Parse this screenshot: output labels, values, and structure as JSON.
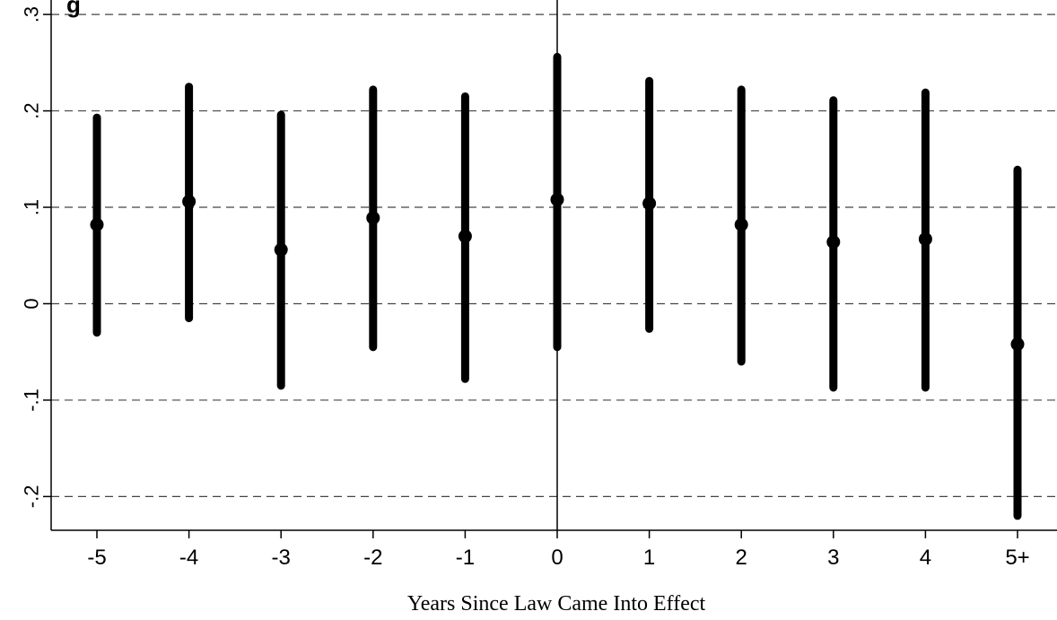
{
  "chart_data": {
    "type": "scatter",
    "title_fragment": "g",
    "xlabel": "Years Since Law Came Into Effect",
    "ylabel": "",
    "categories": [
      "-5",
      "-4",
      "-3",
      "-2",
      "-1",
      "0",
      "1",
      "2",
      "3",
      "4",
      "5+"
    ],
    "estimates": [
      0.082,
      0.106,
      0.056,
      0.089,
      0.07,
      0.108,
      0.104,
      0.082,
      0.064,
      0.067,
      -0.042
    ],
    "ci_lower": [
      -0.03,
      -0.015,
      -0.085,
      -0.045,
      -0.078,
      -0.045,
      -0.026,
      -0.06,
      -0.087,
      -0.087,
      -0.22
    ],
    "ci_upper": [
      0.193,
      0.225,
      0.196,
      0.222,
      0.215,
      0.256,
      0.231,
      0.222,
      0.211,
      0.219,
      0.139
    ],
    "yticks": [
      {
        "value": 0.3,
        "label": ".3"
      },
      {
        "value": 0.2,
        "label": ".2"
      },
      {
        "value": 0.1,
        "label": ".1"
      },
      {
        "value": 0,
        "label": "0"
      },
      {
        "value": -0.1,
        "label": "-.1"
      },
      {
        "value": -0.2,
        "label": "-.2"
      }
    ],
    "ylim": [
      -0.235,
      0.315
    ],
    "reference_line_category": "0",
    "grid": "dashed horizontal",
    "colors": {
      "markers": "#000000",
      "grid": "#444444",
      "axis": "#000000"
    }
  }
}
